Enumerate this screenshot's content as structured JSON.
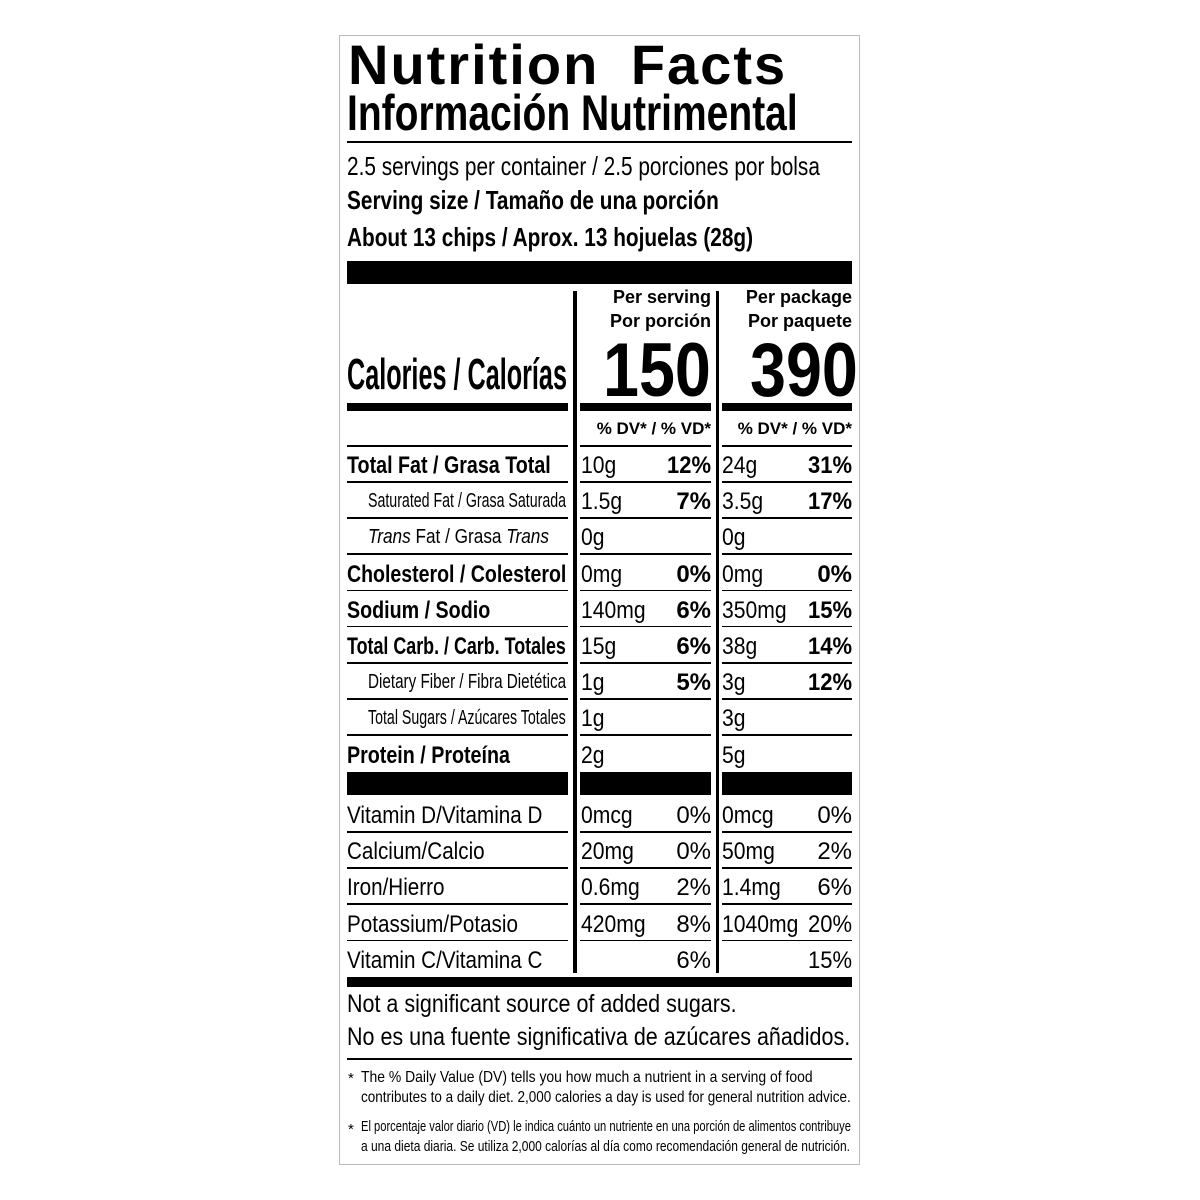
{
  "header": {
    "title": "Nutrition Facts",
    "title_es": "Información Nutrimental",
    "servings": "2.5 servings per container / 2.5 porciones por bolsa",
    "serving_size_label": "Serving size / Tamaño de una porción",
    "serving_size": "About 13 chips / Aprox. 13 hojuelas (28g)"
  },
  "calories": {
    "label": "Calories / Calorías",
    "col1_h1": "Per serving",
    "col1_h2": "Por porción",
    "col1_value": "150",
    "col2_h1": "Per package",
    "col2_h2": "Por paquete",
    "col2_value": "390",
    "dv_header": "% DV* / % VD*"
  },
  "nutrients": [
    {
      "label": "Total Fat / Grasa Total",
      "style": "bold",
      "a1": "10g",
      "p1": "12%",
      "a2": "24g",
      "p2": "31%"
    },
    {
      "label": "Saturated Fat / Grasa Saturada",
      "style": "indent",
      "a1": "1.5g",
      "p1": "7%",
      "a2": "3.5g",
      "p2": "17%"
    },
    {
      "label": "Trans Fat / Grasa Trans",
      "style": "trans",
      "a1": "0g",
      "p1": "",
      "a2": "0g",
      "p2": ""
    },
    {
      "label": "Cholesterol / Colesterol",
      "style": "bold",
      "a1": "0mg",
      "p1": "0%",
      "a2": "0mg",
      "p2": "0%"
    },
    {
      "label": "Sodium / Sodio",
      "style": "bold",
      "a1": "140mg",
      "p1": "6%",
      "a2": "350mg",
      "p2": "15%"
    },
    {
      "label": "Total Carb. / Carb. Totales",
      "style": "bold",
      "a1": "15g",
      "p1": "6%",
      "a2": "38g",
      "p2": "14%"
    },
    {
      "label": "Dietary Fiber / Fibra Dietética",
      "style": "indent",
      "a1": "1g",
      "p1": "5%",
      "a2": "3g",
      "p2": "12%"
    },
    {
      "label": "Total Sugars / Azúcares Totales",
      "style": "indent",
      "a1": "1g",
      "p1": "",
      "a2": "3g",
      "p2": ""
    },
    {
      "label": "Protein / Proteína",
      "style": "bold",
      "a1": "2g",
      "p1": "",
      "a2": "5g",
      "p2": ""
    }
  ],
  "vitamins": [
    {
      "label": "Vitamin D/Vitamina D",
      "a1": "0mcg",
      "p1": "0%",
      "a2": "0mcg",
      "p2": "0%"
    },
    {
      "label": "Calcium/Calcio",
      "a1": "20mg",
      "p1": "0%",
      "a2": "50mg",
      "p2": "2%"
    },
    {
      "label": "Iron/Hierro",
      "a1": "0.6mg",
      "p1": "2%",
      "a2": "1.4mg",
      "p2": "6%"
    },
    {
      "label": "Potassium/Potasio",
      "a1": "420mg",
      "p1": "8%",
      "a2": "1040mg",
      "p2": "20%"
    },
    {
      "label": "Vitamin C/Vitamina C",
      "a1": "",
      "p1": "6%",
      "a2": "",
      "p2": "15%"
    }
  ],
  "footer": {
    "line1": "Not a significant source of added sugars.",
    "line2": "No es una fuente significativa de azúcares añadidos.",
    "note_star": "*",
    "note1a": "The % Daily Value (DV) tells you how much a nutrient in a serving of food",
    "note1b": "contributes to a daily diet. 2,000 calories a day is used for general nutrition advice.",
    "note2a": "El porcentaje valor diario (VD) le indica cuánto un nutriente en una porción de alimentos contribuye",
    "note2b": "a una dieta diaria. Se utiliza 2,000 calorías al día como recomendación general de nutrición."
  }
}
